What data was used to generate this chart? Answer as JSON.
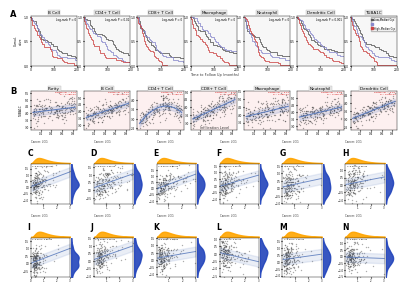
{
  "row_A_labels": [
    "B Cell",
    "CD4+ T Cell",
    "CD8+ T Cell",
    "Macrophage",
    "Neutrophil",
    "Dendritic Cell",
    "TUBA1C"
  ],
  "row_A_pvals": [
    "Log-rank P = 0",
    "Log-rank P = 0.01",
    "Log-rank P = 0",
    "Log-rank P = 0",
    "Log-rank P = 0",
    "Log-rank P = 0.001",
    "Log-rank P = 0"
  ],
  "row_B_labels": [
    "Purity",
    "B Cell",
    "CD4+ T Cell",
    "CD8+ T Cell",
    "Macrophage",
    "Neutrophil",
    "Dendritic Cell"
  ],
  "row_C_to_H_labels": [
    "C",
    "D",
    "E",
    "F",
    "G",
    "H"
  ],
  "row_I_to_N_labels": [
    "I",
    "J",
    "K",
    "L",
    "M",
    "N"
  ],
  "legend_low": "Low-Median Grp",
  "legend_high": "High-Median Grp",
  "survival_high_color": "#555555",
  "survival_low_color": "#cc4444",
  "survival_mid_color": "#8888cc",
  "scatter_dot_color": "#333333",
  "trend_line_color": "#5577bb",
  "orange_hist_color": "#ffa500",
  "blue_hist_color": "#2244bb",
  "row_A_bg": "#f7f7f7",
  "row_B_bg": "#fdf0f0",
  "row_B_header_bg": "#e8e8e8",
  "row_B_annot_color": "#cc0000",
  "fig_bg": "#ffffff",
  "panel_bg": "#ffffff"
}
